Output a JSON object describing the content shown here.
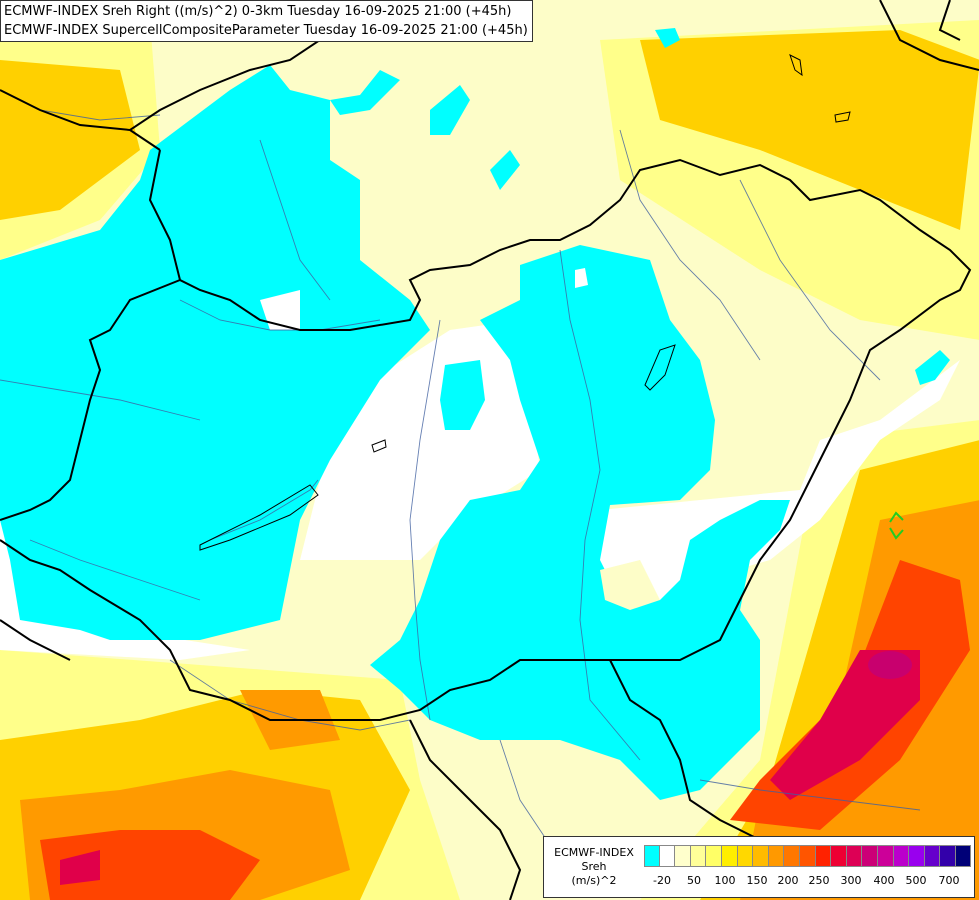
{
  "title": {
    "line1": "ECMWF-INDEX Sreh Right ((m/s)^2) 0-3km Tuesday 16-09-2025 21:00 (+45h)",
    "line2": "ECMWF-INDEX SupercellCompositeParameter Tuesday 16-09-2025 21:00 (+45h)"
  },
  "legend": {
    "source": "ECMWF-INDEX",
    "variable": "Sreh",
    "unit": "(m/s)^2",
    "colors": [
      "#00ffff",
      "#ffffff",
      "#ffffcc",
      "#ffff99",
      "#ffff66",
      "#ffee00",
      "#ffd800",
      "#ffbb00",
      "#ff9900",
      "#ff7700",
      "#ff5500",
      "#ff2200",
      "#ee0033",
      "#dd0055",
      "#cc0077",
      "#cc0099",
      "#bb00cc",
      "#9900ee",
      "#6600cc",
      "#3300aa",
      "#000077"
    ],
    "tick_labels": [
      "-20",
      "50",
      "100",
      "150",
      "200",
      "250",
      "300",
      "400",
      "500",
      "700"
    ]
  },
  "colors": {
    "land": "#fdfdc8",
    "low_helicity": "#00ffff",
    "border": "#000000",
    "river": "#4060a0"
  }
}
